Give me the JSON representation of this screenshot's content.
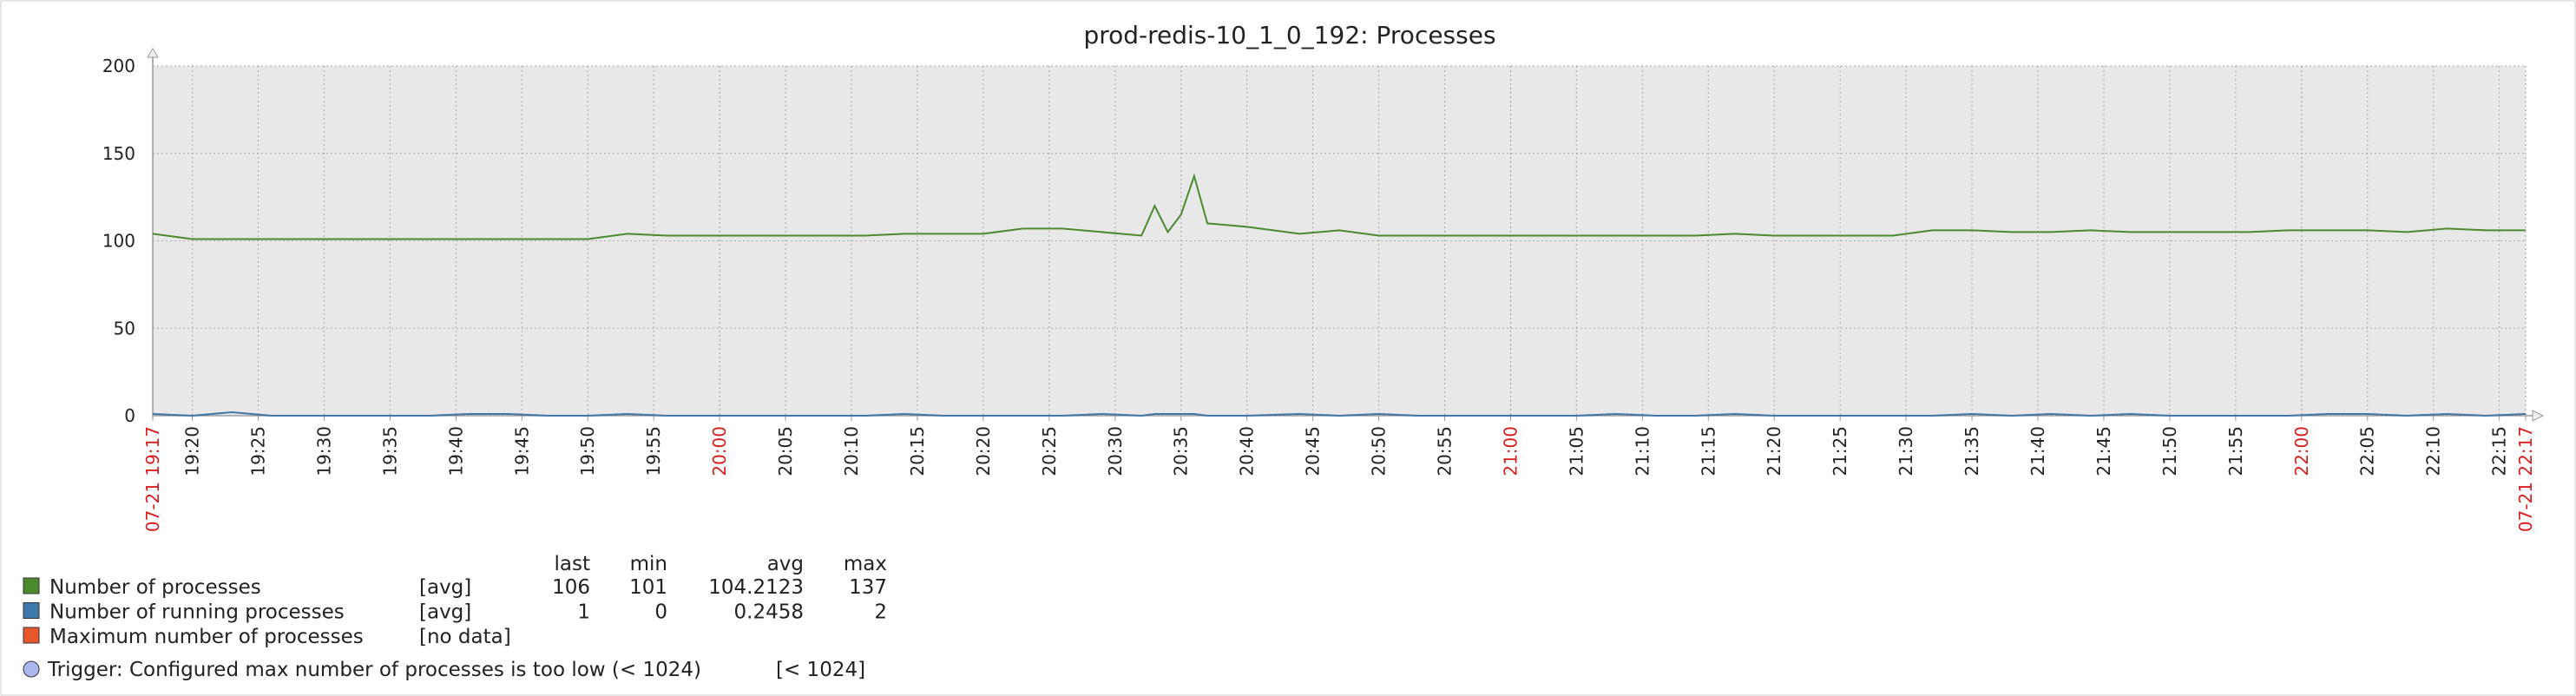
{
  "chart_data": {
    "type": "line",
    "title": "prod-redis-10_1_0_192: Processes",
    "x": [
      "19:17",
      "19:20",
      "19:23",
      "19:26",
      "19:29",
      "19:32",
      "19:35",
      "19:38",
      "19:41",
      "19:44",
      "19:47",
      "19:50",
      "19:53",
      "19:56",
      "19:59",
      "20:02",
      "20:05",
      "20:08",
      "20:11",
      "20:14",
      "20:17",
      "20:20",
      "20:23",
      "20:26",
      "20:29",
      "20:32",
      "20:33",
      "20:34",
      "20:35",
      "20:36",
      "20:37",
      "20:40",
      "20:44",
      "20:47",
      "20:50",
      "20:53",
      "20:56",
      "20:59",
      "21:02",
      "21:05",
      "21:08",
      "21:11",
      "21:14",
      "21:17",
      "21:20",
      "21:23",
      "21:26",
      "21:29",
      "21:32",
      "21:35",
      "21:38",
      "21:41",
      "21:44",
      "21:47",
      "21:50",
      "21:53",
      "21:56",
      "21:59",
      "22:02",
      "22:05",
      "22:08",
      "22:11",
      "22:14",
      "22:17"
    ],
    "xlim": [
      "07-21 19:17",
      "07-21 22:17"
    ],
    "xticks": [
      "07-21 19:17",
      "19:20",
      "19:25",
      "19:30",
      "19:35",
      "19:40",
      "19:45",
      "19:50",
      "19:55",
      "20:00",
      "20:05",
      "20:10",
      "20:15",
      "20:20",
      "20:25",
      "20:30",
      "20:35",
      "20:40",
      "20:45",
      "20:50",
      "20:55",
      "21:00",
      "21:05",
      "21:10",
      "21:15",
      "21:20",
      "21:25",
      "21:30",
      "21:35",
      "21:40",
      "21:45",
      "21:50",
      "21:55",
      "22:00",
      "22:05",
      "22:10",
      "22:15",
      "07-21 22:17"
    ],
    "ylim": [
      0,
      200
    ],
    "yticks": [
      0,
      50,
      100,
      150,
      200
    ],
    "grid": true,
    "legend_columns": [
      "last",
      "min",
      "avg",
      "max"
    ],
    "series": [
      {
        "name": "Number of processes",
        "color": "#4c8a2e",
        "func": "[avg]",
        "last": 106,
        "min": 101,
        "avg": 104.2123,
        "max": 137,
        "values": [
          104,
          101,
          101,
          101,
          101,
          101,
          101,
          101,
          101,
          101,
          101,
          101,
          104,
          103,
          103,
          103,
          103,
          103,
          103,
          104,
          104,
          104,
          107,
          107,
          105,
          103,
          120,
          105,
          115,
          137,
          110,
          108,
          104,
          106,
          103,
          103,
          103,
          103,
          103,
          103,
          103,
          103,
          103,
          104,
          103,
          103,
          103,
          103,
          106,
          106,
          105,
          105,
          106,
          105,
          105,
          105,
          105,
          106,
          106,
          106,
          105,
          107,
          106,
          106
        ]
      },
      {
        "name": "Number of running processes",
        "color": "#3d78a8",
        "func": "[avg]",
        "last": 1,
        "min": 0,
        "avg": 0.2458,
        "max": 2,
        "values": [
          1,
          0,
          2,
          0,
          0,
          0,
          0,
          0,
          1,
          1,
          0,
          0,
          1,
          0,
          0,
          0,
          0,
          0,
          0,
          1,
          0,
          0,
          0,
          0,
          1,
          0,
          1,
          1,
          1,
          1,
          0,
          0,
          1,
          0,
          1,
          0,
          0,
          0,
          0,
          0,
          1,
          0,
          0,
          1,
          0,
          0,
          0,
          0,
          0,
          1,
          0,
          1,
          0,
          1,
          0,
          0,
          0,
          0,
          1,
          1,
          0,
          1,
          0,
          1
        ]
      },
      {
        "name": "Maximum number of processes",
        "color": "#e8572c",
        "func": "[no data]"
      }
    ],
    "trigger": {
      "label": "Trigger: Configured max number of processes is too low (< 1024)",
      "threshold": "[< 1024]",
      "color": "#aab8ee"
    }
  }
}
